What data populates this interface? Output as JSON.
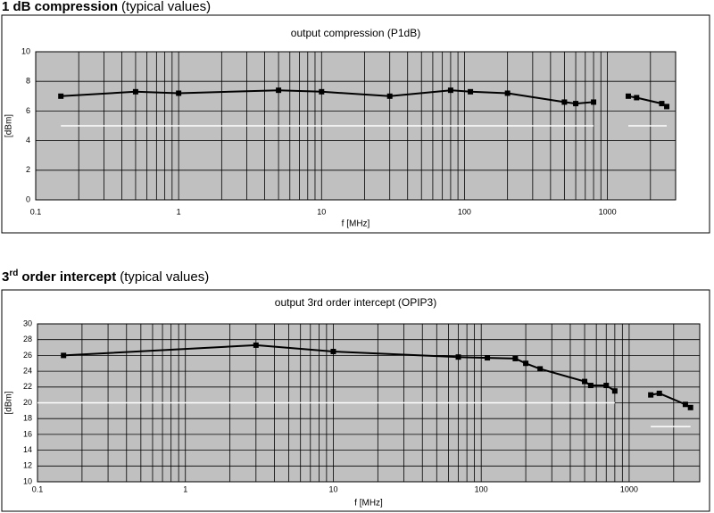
{
  "sections": [
    {
      "heading": [
        {
          "text": "1 dB compression",
          "weight": "bold"
        },
        {
          "text": "(typical values)"
        }
      ]
    },
    {
      "heading": [
        {
          "text": "3",
          "weight": "bold"
        },
        {
          "text": "rd",
          "weight": "bold",
          "sup": true
        },
        {
          "text": "order intercept",
          "weight": "bold"
        },
        {
          "text": "(typical values)"
        }
      ]
    }
  ],
  "chart_data": [
    {
      "type": "line",
      "title": "output compression (P1dB)",
      "x_label": "f [MHz]",
      "y_label": "[dBm]",
      "xscale": "log",
      "xlim": [
        0.1,
        3000
      ],
      "xticks": [
        0.1,
        1,
        10,
        100,
        1000
      ],
      "ylim": [
        0,
        10
      ],
      "yticks": [
        0,
        2,
        4,
        6,
        8,
        10
      ],
      "grid": true,
      "background": "#c0c0c0",
      "series": [
        {
          "color": "#000000",
          "markers": true,
          "x": [
            0.15,
            0.5,
            1,
            5,
            10,
            30,
            80,
            110,
            200,
            500,
            600,
            800,
            null,
            1400,
            1600,
            2400,
            2600
          ],
          "values": [
            7.0,
            7.3,
            7.2,
            7.4,
            7.3,
            7.0,
            7.4,
            7.3,
            7.2,
            6.6,
            6.5,
            6.6,
            null,
            7.0,
            6.9,
            6.5,
            6.3
          ]
        },
        {
          "color": "#ffffff",
          "markers": false,
          "x": [
            0.15,
            800,
            null,
            1400,
            2600
          ],
          "values": [
            5,
            5,
            null,
            5,
            5
          ]
        }
      ]
    },
    {
      "type": "line",
      "title": "output 3rd order intercept (OPIP3)",
      "x_label": "f [MHz]",
      "y_label": "[dBm]",
      "xscale": "log",
      "xlim": [
        0.1,
        3000
      ],
      "xticks": [
        0.1,
        1,
        10,
        100,
        1000
      ],
      "ylim": [
        10,
        30
      ],
      "yticks": [
        10,
        12,
        14,
        16,
        18,
        20,
        22,
        24,
        26,
        28,
        30
      ],
      "grid": true,
      "background": "#c0c0c0",
      "series": [
        {
          "color": "#000000",
          "markers": true,
          "x": [
            0.15,
            3,
            10,
            70,
            110,
            170,
            200,
            250,
            500,
            550,
            700,
            800,
            null,
            1400,
            1600,
            2400,
            2600
          ],
          "values": [
            26.0,
            27.3,
            26.5,
            25.8,
            25.7,
            25.6,
            25.0,
            24.3,
            22.7,
            22.2,
            22.2,
            21.5,
            null,
            21.0,
            21.2,
            19.8,
            19.4
          ]
        },
        {
          "color": "#ffffff",
          "markers": false,
          "x": [
            0.1,
            800,
            null,
            1400,
            2600
          ],
          "values": [
            20,
            20,
            null,
            17,
            17
          ]
        }
      ]
    }
  ]
}
